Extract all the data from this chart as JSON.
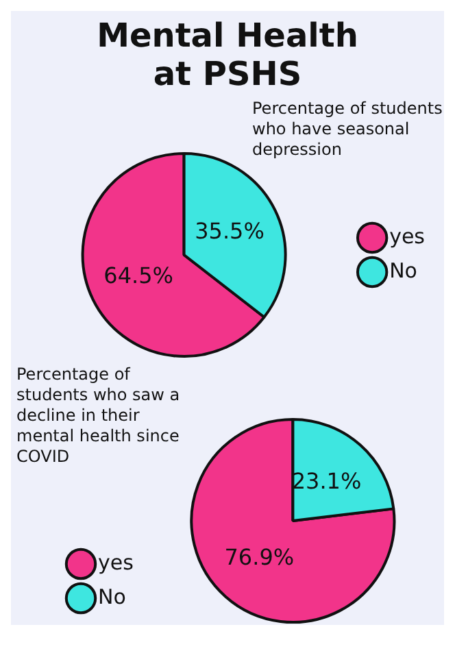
{
  "chart_data": [
    {
      "type": "pie",
      "title": "Mental Health at PSHS",
      "subtitle": "Percentage of students who have seasonal depression",
      "categories": [
        "yes",
        "No"
      ],
      "values": [
        64.5,
        35.5
      ],
      "colors": [
        "#f2348a",
        "#3ee6e0"
      ],
      "value_labels": [
        "64.5%",
        "35.5%"
      ],
      "legend": "right"
    },
    {
      "type": "pie",
      "title": "Percentage of students who saw a decline in their mental health since COVID",
      "categories": [
        "yes",
        "No"
      ],
      "values": [
        76.9,
        23.1
      ],
      "colors": [
        "#f2348a",
        "#3ee6e0"
      ],
      "value_labels": [
        "76.9%",
        "23.1%"
      ],
      "legend": "left"
    }
  ]
}
